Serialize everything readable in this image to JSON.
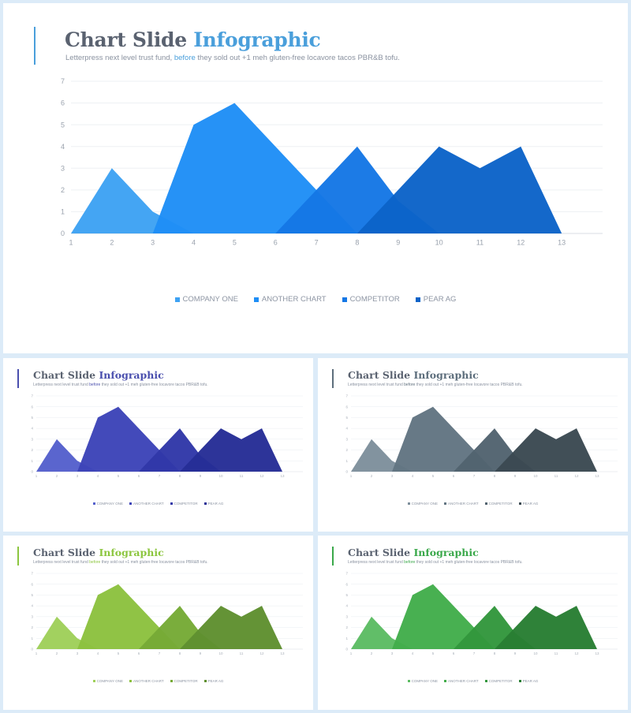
{
  "slides": [
    {
      "id": "main",
      "title_plain": "Chart Slide",
      "title_accent": "Infographic",
      "subtitle_before": "Letterpress next level trust fund, ",
      "subtitle_accent": "before",
      "subtitle_after": " they sold out +1 meh gluten-free locavore tacos PBR&B tofu.",
      "colors": {
        "accent": "#4a9fdb",
        "series": [
          "#3ea2f3",
          "#1f8ef6",
          "#1577e5",
          "#0c63c8"
        ]
      }
    },
    {
      "id": "blue",
      "title_plain": "Chart Slide",
      "title_accent": "Infographic",
      "subtitle_before": "Letterpress next level trust fund ",
      "subtitle_accent": "before",
      "subtitle_after": " they sold out +1 meh gluten-free locavore tacos PBR&B tofu.",
      "colors": {
        "accent": "#4a4fae",
        "series": [
          "#5560cc",
          "#3d44b8",
          "#3138a8",
          "#262d96"
        ]
      }
    },
    {
      "id": "slate",
      "title_plain": "Chart Slide",
      "title_accent": "Infographic",
      "subtitle_before": "Letterpress next level trust fund ",
      "subtitle_accent": "before",
      "subtitle_after": " they sold out +1 meh gluten-free locavore tacos PBR&B tofu.",
      "colors": {
        "accent": "#5d6e7c",
        "series": [
          "#7e8f9c",
          "#627582",
          "#52636f",
          "#3b4952"
        ]
      }
    },
    {
      "id": "lime",
      "title_plain": "Chart Slide",
      "title_accent": "Infographic",
      "subtitle_before": "Letterpress next level trust fund ",
      "subtitle_accent": "before",
      "subtitle_after": " they sold out +1 meh gluten-free locavore tacos PBR&B tofu.",
      "colors": {
        "accent": "#8cc63f",
        "series": [
          "#9fd05a",
          "#8cc13f",
          "#76aa36",
          "#5f9030"
        ]
      }
    },
    {
      "id": "green",
      "title_plain": "Chart Slide",
      "title_accent": "Infographic",
      "subtitle_before": "Letterpress next level trust fund ",
      "subtitle_accent": "before",
      "subtitle_after": " they sold out +1 meh gluten-free locavore tacos PBR&B tofu.",
      "colors": {
        "accent": "#3aa84a",
        "series": [
          "#5cbc63",
          "#42ad4b",
          "#33973d",
          "#287e33"
        ]
      }
    }
  ],
  "chart_data": {
    "type": "area",
    "x": [
      1,
      2,
      3,
      4,
      5,
      6,
      7,
      8,
      9,
      10,
      11,
      12,
      13
    ],
    "xlim": [
      1,
      14
    ],
    "ylim": [
      0,
      7
    ],
    "yticks": [
      0,
      1,
      2,
      3,
      4,
      5,
      6,
      7
    ],
    "xticks": [
      1,
      2,
      3,
      4,
      5,
      6,
      7,
      8,
      9,
      10,
      11,
      12,
      13
    ],
    "grid": true,
    "legend_position": "bottom",
    "series": [
      {
        "name": "COMPANY ONE",
        "points": [
          [
            1,
            0
          ],
          [
            2,
            3
          ],
          [
            3,
            1
          ],
          [
            4,
            0
          ]
        ]
      },
      {
        "name": "ANOTHER CHART",
        "points": [
          [
            3,
            0
          ],
          [
            4,
            5
          ],
          [
            5,
            6
          ],
          [
            7,
            2
          ],
          [
            8,
            0
          ]
        ]
      },
      {
        "name": "COMPETITOR",
        "points": [
          [
            6,
            0
          ],
          [
            8,
            4
          ],
          [
            9,
            1.5
          ],
          [
            10,
            0
          ]
        ]
      },
      {
        "name": "PEAR AG",
        "points": [
          [
            8,
            0
          ],
          [
            10,
            4
          ],
          [
            11,
            3
          ],
          [
            12,
            4
          ],
          [
            13,
            0
          ]
        ]
      }
    ]
  }
}
